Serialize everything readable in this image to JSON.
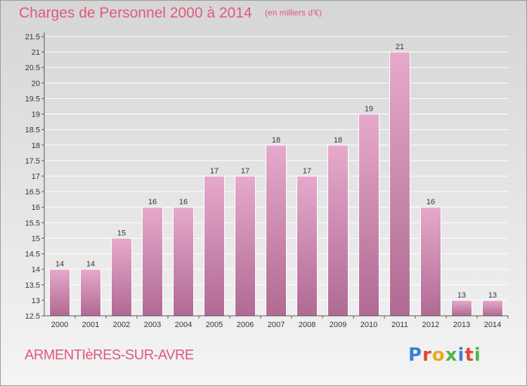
{
  "title": "Charges de Personnel 2000 à 2014",
  "unit_note": "(en milliers d'€)",
  "commune": "ARMENTIèRES-SUR-AVRE",
  "logo": {
    "text": "Proxiti",
    "colors": [
      "#3d7fd6",
      "#e8452c",
      "#f2a81f",
      "#4cb848",
      "#3d7fd6",
      "#e8452c",
      "#4cb848"
    ]
  },
  "colors": {
    "title": "#e05a7a",
    "bar_light": "#e6a9cc",
    "bar_dark": "#b06a93",
    "grid": "#ffffff",
    "axis": "#555555"
  },
  "chart_data": {
    "type": "bar",
    "title": "Charges de Personnel 2000 à 2014",
    "subtitle": "(en milliers d'€)",
    "xlabel": "",
    "ylabel": "",
    "categories": [
      "2000",
      "2001",
      "2002",
      "2003",
      "2004",
      "2005",
      "2006",
      "2007",
      "2008",
      "2009",
      "2010",
      "2011",
      "2012",
      "2013",
      "2014"
    ],
    "values": [
      14,
      14,
      15,
      16,
      16,
      17,
      17,
      18,
      17,
      18,
      19,
      21,
      16,
      13,
      13
    ],
    "ylim": [
      12.5,
      21.5
    ],
    "yticks": [
      "12.5",
      "13",
      "13.5",
      "14",
      "14.5",
      "15",
      "15.5",
      "16",
      "16.5",
      "17",
      "17.5",
      "18",
      "18.5",
      "19",
      "19.5",
      "20",
      "20.5",
      "21",
      "21.5"
    ],
    "grid": true
  }
}
